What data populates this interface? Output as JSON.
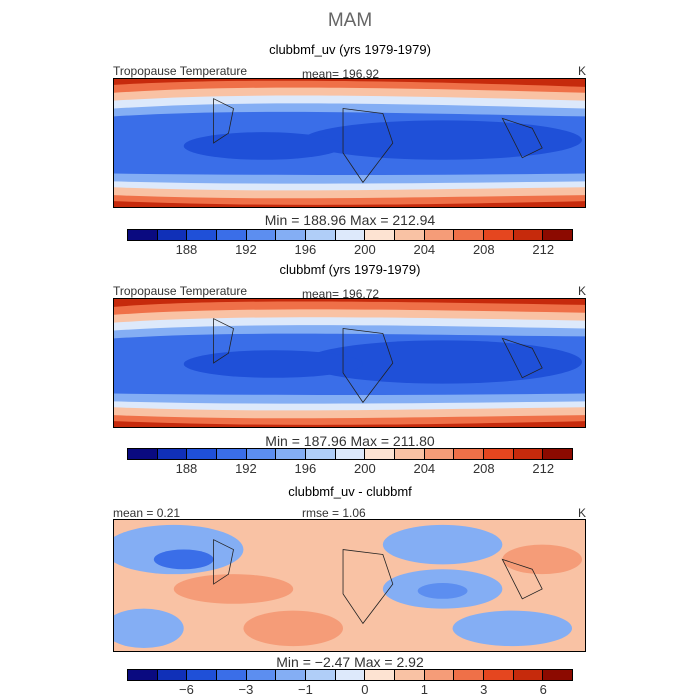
{
  "figure": {
    "season": "MAM"
  },
  "panels": [
    {
      "title": "clubbmf_uv (yrs 1979-1979)",
      "left_label": "Tropopause Temperature",
      "stat_label": "mean= 196.92",
      "unit": "K",
      "min_max": "Min = 188.96 Max = 212.94"
    },
    {
      "title": "clubbmf (yrs 1979-1979)",
      "left_label": "Tropopause Temperature",
      "stat_label": "mean= 196.72",
      "unit": "K",
      "min_max": "Min = 187.96 Max = 211.80"
    },
    {
      "title": "clubbmf_uv - clubbmf",
      "left_label": "mean =    0.21",
      "stat_label": "rmse =    1.06",
      "unit": "K",
      "min_max": "Min =  −2.47 Max =    2.92"
    }
  ],
  "colorbars": {
    "abs_colors": [
      "#0a0a80",
      "#1030b8",
      "#1f50d8",
      "#3a6ee8",
      "#5c8ef0",
      "#84aef4",
      "#b0cef8",
      "#dde9fb",
      "#fde3d2",
      "#f9c2a4",
      "#f59c78",
      "#ef7048",
      "#e5461f",
      "#c62a0c",
      "#8c0a00"
    ],
    "diff_colors": [
      "#0a0a80",
      "#1030b8",
      "#1f50d8",
      "#3a6ee8",
      "#5c8ef0",
      "#84aef4",
      "#b0cef8",
      "#dde9fb",
      "#fde3d2",
      "#f9c2a4",
      "#f59c78",
      "#ef7048",
      "#e5461f",
      "#c62a0c",
      "#8c0a00"
    ],
    "abs_ticks": [
      "188",
      "192",
      "196",
      "200",
      "204",
      "208",
      "212"
    ],
    "diff_ticks": [
      "−6",
      "−3",
      "−1",
      "0",
      "1",
      "3",
      "6"
    ]
  },
  "chart_data": [
    {
      "type": "heatmap",
      "title": "clubbmf_uv (yrs 1979-1979)",
      "variable": "Tropopause Temperature",
      "units": "K",
      "mean": 196.92,
      "min": 188.96,
      "max": 212.94,
      "colorbar_levels": [
        186,
        188,
        190,
        192,
        194,
        196,
        198,
        200,
        202,
        204,
        206,
        208,
        210,
        212,
        214
      ],
      "latitudes": [
        60,
        45,
        30,
        15,
        0,
        -15,
        -30,
        -45,
        -60
      ],
      "zonal_mean_K": [
        211,
        207,
        201,
        195,
        192,
        194,
        200,
        207,
        211
      ]
    },
    {
      "type": "heatmap",
      "title": "clubbmf (yrs 1979-1979)",
      "variable": "Tropopause Temperature",
      "units": "K",
      "mean": 196.72,
      "min": 187.96,
      "max": 211.8,
      "colorbar_levels": [
        186,
        188,
        190,
        192,
        194,
        196,
        198,
        200,
        202,
        204,
        206,
        208,
        210,
        212,
        214
      ],
      "latitudes": [
        60,
        45,
        30,
        15,
        0,
        -15,
        -30,
        -45,
        -60
      ],
      "zonal_mean_K": [
        210,
        206,
        200,
        194,
        191,
        193,
        199,
        206,
        210
      ]
    },
    {
      "type": "heatmap",
      "title": "clubbmf_uv - clubbmf",
      "units": "K",
      "mean": 0.21,
      "rmse": 1.06,
      "min": -2.47,
      "max": 2.92,
      "colorbar_levels": [
        -8,
        -6,
        -4,
        -3,
        -2,
        -1,
        -0.5,
        0,
        0.5,
        1,
        2,
        3,
        4,
        6,
        8
      ]
    }
  ]
}
